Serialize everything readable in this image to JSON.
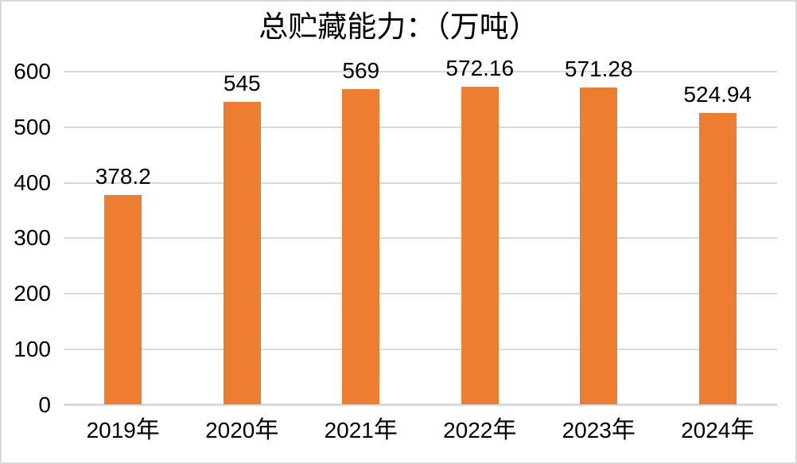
{
  "chart_data": {
    "type": "bar",
    "title": "总贮藏能力：（万吨）",
    "categories": [
      "2019年",
      "2020年",
      "2021年",
      "2022年",
      "2023年",
      "2024年"
    ],
    "category_parts": [
      {
        "num": "2019",
        "suffix": "年"
      },
      {
        "num": "2020",
        "suffix": "年"
      },
      {
        "num": "2021",
        "suffix": "年"
      },
      {
        "num": "2022",
        "suffix": "年"
      },
      {
        "num": "2023",
        "suffix": "年"
      },
      {
        "num": "2024",
        "suffix": "年"
      }
    ],
    "values": [
      378.2,
      545,
      569,
      572.16,
      571.28,
      524.94
    ],
    "value_labels": [
      "378.2",
      "545",
      "569",
      "572.16",
      "571.28",
      "524.94"
    ],
    "xlabel": "",
    "ylabel": "",
    "ylim": [
      0,
      600
    ],
    "ytick_interval": 100,
    "yticks": [
      0,
      100,
      200,
      300,
      400,
      500,
      600
    ],
    "grid": true,
    "legend": false
  },
  "colors": {
    "bar": "#ED7D31",
    "gridline": "#D9D9D9",
    "axis_line": "#D9D9D9",
    "text": "#000000",
    "border": "#D9D9D9",
    "background": "#FFFFFF"
  }
}
